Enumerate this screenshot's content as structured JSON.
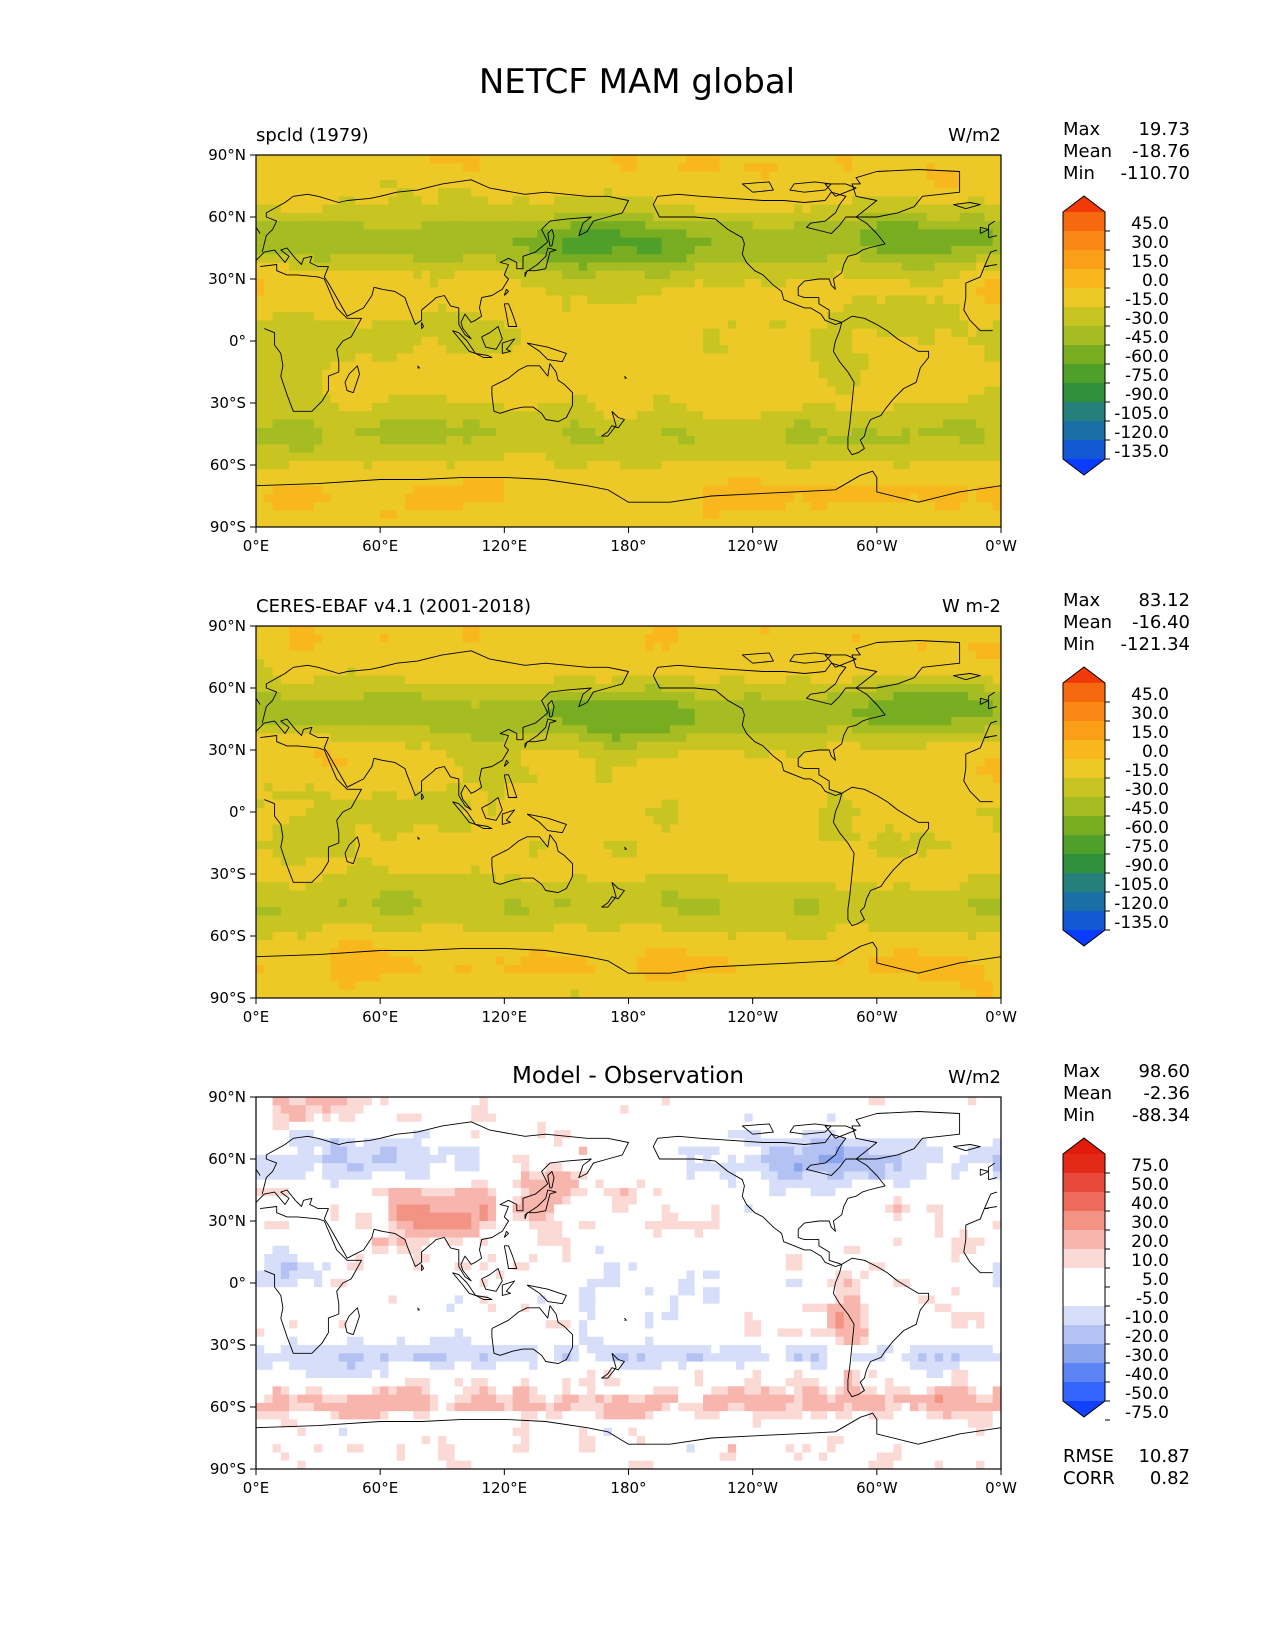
{
  "figure": {
    "title": "NETCF MAM global"
  },
  "axes": {
    "yticks": [
      "90°N",
      "60°N",
      "30°N",
      "0°",
      "30°S",
      "60°S",
      "90°S"
    ],
    "xticks": [
      "0°E",
      "60°E",
      "120°E",
      "180°",
      "120°W",
      "60°W",
      "0°W"
    ]
  },
  "colors": {
    "abs_scale": [
      "#0a3cff",
      "#1158d2",
      "#1a6fa7",
      "#257f7b",
      "#2f8f3a",
      "#4ea02a",
      "#78ad22",
      "#a5bc22",
      "#c8c523",
      "#ecc926",
      "#f8b81d",
      "#fb9f19",
      "#f98914",
      "#f6690f",
      "#f23a08"
    ],
    "diff_scale": [
      "#1240ff",
      "#3366ff",
      "#5c84f5",
      "#8aa5ee",
      "#b3c2f3",
      "#d6defa",
      "#ffffff",
      "#ffffff",
      "#fbd9d5",
      "#f7b5ad",
      "#f29383",
      "#ec6b5b",
      "#e8493b",
      "#e32a19",
      "#e01b0a"
    ]
  },
  "chart_data": [
    {
      "type": "heatmap",
      "title": "spcld (1979)",
      "units": "W/m2",
      "stats": {
        "max_label": "Max",
        "max": "19.73",
        "mean_label": "Mean",
        "mean": "-18.76",
        "min_label": "Min",
        "min": "-110.70"
      },
      "colorbar_levels": [
        "45.0",
        "30.0",
        "15.0",
        "0.0",
        "-15.0",
        "-30.0",
        "-45.0",
        "-60.0",
        "-75.0",
        "-90.0",
        "-105.0",
        "-120.0",
        "-135.0"
      ],
      "lon_range": [
        0,
        360
      ],
      "lat_range": [
        -90,
        90
      ]
    },
    {
      "type": "heatmap",
      "title": "CERES-EBAF v4.1 (2001-2018)",
      "units": "W m-2",
      "stats": {
        "max_label": "Max",
        "max": "83.12",
        "mean_label": "Mean",
        "mean": "-16.40",
        "min_label": "Min",
        "min": "-121.34"
      },
      "colorbar_levels": [
        "45.0",
        "30.0",
        "15.0",
        "0.0",
        "-15.0",
        "-30.0",
        "-45.0",
        "-60.0",
        "-75.0",
        "-90.0",
        "-105.0",
        "-120.0",
        "-135.0"
      ],
      "lon_range": [
        0,
        360
      ],
      "lat_range": [
        -90,
        90
      ]
    },
    {
      "type": "heatmap",
      "title": "Model - Observation",
      "units": "W/m2",
      "stats": {
        "max_label": "Max",
        "max": "98.60",
        "mean_label": "Mean",
        "mean": "-2.36",
        "min_label": "Min",
        "min": "-88.34"
      },
      "colorbar_levels": [
        "75.0",
        "50.0",
        "40.0",
        "30.0",
        "20.0",
        "10.0",
        "5.0",
        "-5.0",
        "-10.0",
        "-20.0",
        "-30.0",
        "-40.0",
        "-50.0",
        "-75.0"
      ],
      "extra_stats": {
        "rmse_label": "RMSE",
        "rmse": "10.87",
        "corr_label": "CORR",
        "corr": "0.82"
      },
      "lon_range": [
        0,
        360
      ],
      "lat_range": [
        -90,
        90
      ]
    }
  ]
}
